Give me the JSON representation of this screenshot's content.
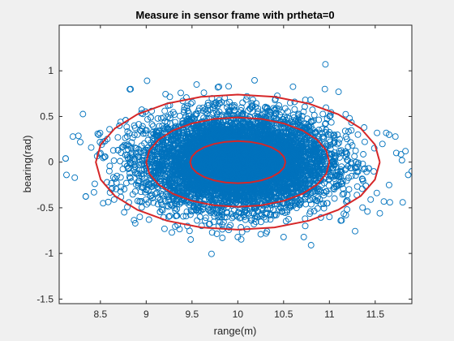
{
  "chart_data": {
    "type": "scatter",
    "title": "Measure in sensor frame with prtheta=0",
    "xlabel": "range(m)",
    "ylabel": "bearing(rad)",
    "xlim": [
      8.05,
      11.9
    ],
    "ylim": [
      -1.55,
      1.5
    ],
    "x_ticks": [
      8.5,
      9,
      9.5,
      10,
      10.5,
      11,
      11.5
    ],
    "x_tick_labels": [
      "8.5",
      "9",
      "9.5",
      "10",
      "10.5",
      "11",
      "11.5"
    ],
    "y_ticks": [
      -1.5,
      -1,
      -0.5,
      0,
      0.5,
      1
    ],
    "y_tick_labels": [
      "-1.5",
      "-1",
      "-0.5",
      "0",
      "0.5",
      "1"
    ],
    "grid": false,
    "series": [
      {
        "style": "scatter",
        "marker": "circle-open",
        "color": "#0072BD",
        "distribution": {
          "center_x": 10.0,
          "center_y": 0.0,
          "std_x": 0.5,
          "std_y": 0.25
        },
        "points": [
          [
            8.12,
            0.04
          ],
          [
            8.13,
            -0.14
          ],
          [
            8.2,
            0.28
          ],
          [
            8.22,
            -0.17
          ],
          [
            8.28,
            0.22
          ],
          [
            8.4,
            0.16
          ],
          [
            8.43,
            -0.33
          ],
          [
            8.47,
            0.31
          ],
          [
            8.53,
            -0.45
          ],
          [
            8.55,
            0.23
          ],
          [
            8.6,
            0.36
          ],
          [
            8.65,
            -0.41
          ],
          [
            8.72,
            0.44
          ],
          [
            8.76,
            -0.55
          ],
          [
            8.83,
            0.8
          ],
          [
            8.93,
            -0.6
          ],
          [
            9.03,
            -0.63
          ],
          [
            9.06,
            0.56
          ],
          [
            9.2,
            -0.73
          ],
          [
            9.24,
            0.62
          ],
          [
            9.28,
            -0.77
          ],
          [
            9.4,
            0.67
          ],
          [
            9.45,
            -0.7
          ],
          [
            9.55,
            0.85
          ],
          [
            9.63,
            0.76
          ],
          [
            9.72,
            -0.77
          ],
          [
            9.9,
            0.83
          ],
          [
            10.0,
            -0.82
          ],
          [
            10.1,
            0.72
          ],
          [
            10.25,
            -0.79
          ],
          [
            10.5,
            -0.82
          ],
          [
            10.62,
            0.66
          ],
          [
            10.72,
            -0.82
          ],
          [
            10.8,
            -0.91
          ],
          [
            10.95,
            0.8
          ],
          [
            11.0,
            -0.6
          ],
          [
            11.1,
            0.77
          ],
          [
            11.18,
            -0.58
          ],
          [
            11.22,
            0.48
          ],
          [
            11.3,
            -0.36
          ],
          [
            11.38,
            0.38
          ],
          [
            11.45,
            -0.41
          ],
          [
            11.52,
            0.32
          ],
          [
            11.55,
            -0.56
          ],
          [
            11.62,
            0.32
          ],
          [
            11.66,
            -0.44
          ],
          [
            11.72,
            0.28
          ],
          [
            11.73,
            0.1
          ],
          [
            11.8,
            -0.44
          ],
          [
            11.83,
            0.12
          ],
          [
            11.86,
            -0.14
          ],
          [
            11.9,
            -0.1
          ]
        ]
      },
      {
        "style": "line",
        "color": "#D62728",
        "shape": "ellipse",
        "center": [
          10.0,
          0.0
        ],
        "semi_axes": [
          [
            0.52,
            0.23
          ],
          [
            1.0,
            0.49
          ],
          [
            1.55,
            0.74
          ]
        ]
      }
    ]
  }
}
